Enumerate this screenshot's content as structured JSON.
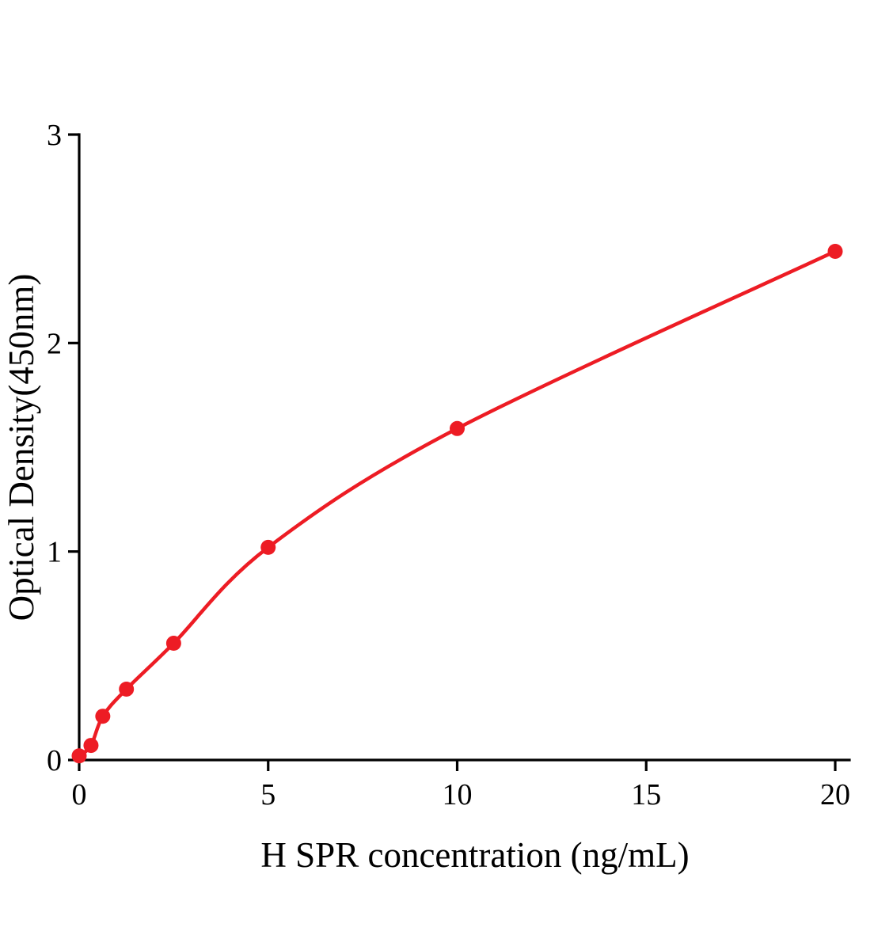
{
  "chart_data": {
    "type": "scatter",
    "title": "",
    "xlabel": "H SPR concentration (ng/mL)",
    "ylabel": "Optical Density(450nm)",
    "x": [
      0,
      0.313,
      0.625,
      1.25,
      2.5,
      5,
      10,
      20
    ],
    "y": [
      0.02,
      0.07,
      0.21,
      0.34,
      0.56,
      1.02,
      1.59,
      2.44
    ],
    "xlim": [
      0,
      20
    ],
    "ylim": [
      0,
      3
    ],
    "xticks": [
      0,
      5,
      10,
      15,
      20
    ],
    "yticks": [
      0,
      1,
      2,
      3
    ],
    "grid": false,
    "legend": "none",
    "curve": "smooth-through-points",
    "colors": {
      "line": "#ed1c24",
      "points": "#ed1c24",
      "axis": "#000000"
    }
  }
}
